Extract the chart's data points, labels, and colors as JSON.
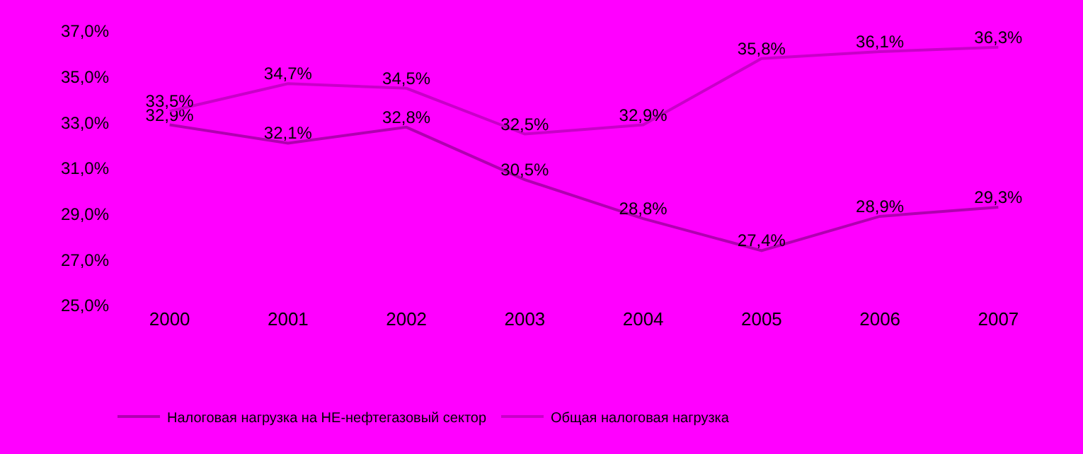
{
  "chart_data": {
    "type": "line",
    "categories": [
      "2000",
      "2001",
      "2002",
      "2003",
      "2004",
      "2005",
      "2006",
      "2007"
    ],
    "series": [
      {
        "name": "Налоговая нагрузка на НЕ-нефтегазовый сектор",
        "color": "#b000b0",
        "values": [
          32.9,
          32.1,
          32.8,
          30.5,
          28.8,
          27.4,
          28.9,
          29.3
        ],
        "value_labels": [
          "32,9%",
          "32,1%",
          "32,8%",
          "30,5%",
          "28,8%",
          "27,4%",
          "28,9%",
          "29,3%"
        ]
      },
      {
        "name": "Общая налоговая нагрузка",
        "color": "#c800c8",
        "values": [
          33.5,
          34.7,
          34.5,
          32.5,
          32.9,
          35.8,
          36.1,
          36.3
        ],
        "value_labels": [
          "33,5%",
          "34,7%",
          "34,5%",
          "32,5%",
          "32,9%",
          "35,8%",
          "36,1%",
          "36,3%"
        ]
      }
    ],
    "ylim": [
      25,
      37
    ],
    "yticks": [
      {
        "value": 25,
        "label": "25,0%"
      },
      {
        "value": 27,
        "label": "27,0%"
      },
      {
        "value": 29,
        "label": "29,0%"
      },
      {
        "value": 31,
        "label": "31,0%"
      },
      {
        "value": 33,
        "label": "33,0%"
      },
      {
        "value": 35,
        "label": "35,0%"
      },
      {
        "value": 37,
        "label": "37,0%"
      }
    ],
    "grid": false,
    "legend": "bottom",
    "marker": "none",
    "line_style": "solid"
  }
}
